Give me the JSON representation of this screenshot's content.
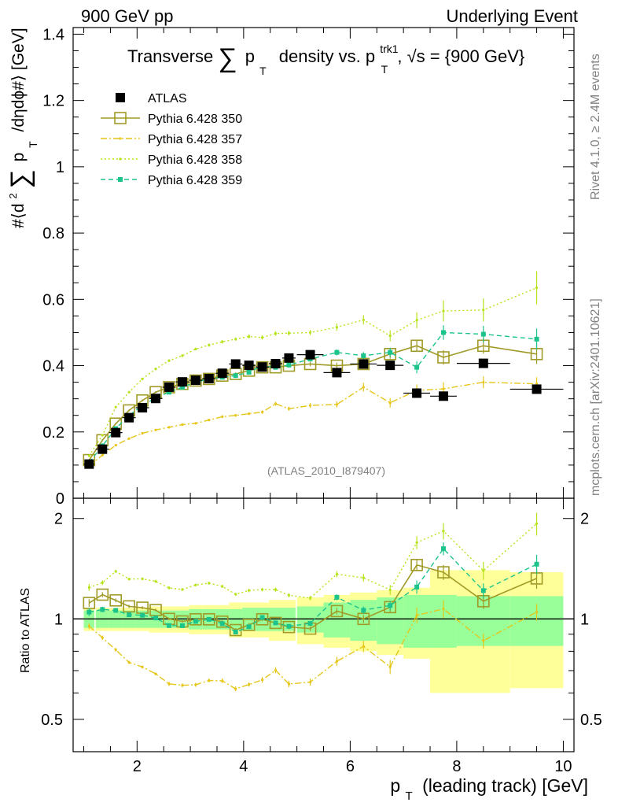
{
  "header": {
    "left": "900 GeV pp",
    "right": "Underlying Event"
  },
  "title": {
    "main": "Transverse",
    "sum_symbol": "∑",
    "p": "p",
    "sub_T": "T",
    "mid": "density vs. p",
    "sup_trk1": "trk1",
    "sub_T2": "T",
    "sqrt_s": ", √s = {900 GeV}"
  },
  "side_labels": {
    "rivet": "Rivet 4.1.0, ≥ 2.4M events",
    "mcplots": "mcplots.cern.ch [arXiv:2401.10621]"
  },
  "analysis_id": "(ATLAS_2010_I879407)",
  "ylabel": {
    "prefix": "#⟨d",
    "sup2": "2",
    "sum": "∑",
    "p": "p",
    "sub_T": "T",
    "suffix": "/dηdϕ#⟩ [GeV]"
  },
  "ratio_ylabel": "Ratio to ATLAS",
  "xlabel": {
    "p": "p",
    "sub_T": "T",
    "rest": "(leading track) [GeV]"
  },
  "legend": [
    {
      "label": "ATLAS",
      "color": "#000000"
    },
    {
      "label": "Pythia 6.428 350",
      "color": "#a09a26"
    },
    {
      "label": "Pythia 6.428 357",
      "color": "#e6c619"
    },
    {
      "label": "Pythia 6.428 358",
      "color": "#b6e31a"
    },
    {
      "label": "Pythia 6.428 359",
      "color": "#1cc48c"
    }
  ],
  "chart_data": {
    "type": "scatter",
    "x_ticks": [
      "2",
      "4",
      "6",
      "8",
      "10"
    ],
    "main_y_ticks": [
      "0",
      "0.2",
      "0.4",
      "0.6",
      "0.8",
      "1",
      "1.2",
      "1.4"
    ],
    "ratio_y_ticks": [
      "0.5",
      "1",
      "2"
    ],
    "main_ylim": [
      0,
      1.42
    ],
    "ratio_ylim": [
      0.4,
      2.3
    ],
    "xlim": [
      0.8,
      10.2
    ],
    "x": [
      1.1,
      1.35,
      1.6,
      1.85,
      2.1,
      2.35,
      2.6,
      2.85,
      3.1,
      3.35,
      3.6,
      3.85,
      4.1,
      4.35,
      4.6,
      4.85,
      5.25,
      5.75,
      6.25,
      6.75,
      7.25,
      7.75,
      8.5,
      9.5
    ],
    "x_err": [
      0.1,
      0.125,
      0.125,
      0.125,
      0.125,
      0.125,
      0.125,
      0.125,
      0.125,
      0.125,
      0.125,
      0.125,
      0.125,
      0.125,
      0.125,
      0.125,
      0.25,
      0.25,
      0.25,
      0.25,
      0.25,
      0.25,
      0.5,
      0.5
    ],
    "band_outer": [
      0.08,
      0.08,
      0.08,
      0.08,
      0.08,
      0.09,
      0.09,
      0.09,
      0.1,
      0.1,
      0.1,
      0.12,
      0.12,
      0.12,
      0.14,
      0.14,
      0.16,
      0.18,
      0.2,
      0.22,
      0.24,
      0.4,
      0.4,
      0.38
    ],
    "band_inner": [
      0.06,
      0.06,
      0.06,
      0.06,
      0.06,
      0.06,
      0.06,
      0.06,
      0.07,
      0.07,
      0.07,
      0.07,
      0.08,
      0.08,
      0.08,
      0.08,
      0.09,
      0.12,
      0.14,
      0.16,
      0.18,
      0.18,
      0.17,
      0.17
    ],
    "series": [
      {
        "name": "ATLAS",
        "color": "#000000",
        "style": "data",
        "values": [
          0.103,
          0.148,
          0.198,
          0.243,
          0.273,
          0.301,
          0.335,
          0.351,
          0.356,
          0.361,
          0.377,
          0.405,
          0.401,
          0.396,
          0.406,
          0.423,
          0.433,
          0.379,
          0.405,
          0.401,
          0.317,
          0.308,
          0.407,
          0.329
        ],
        "err": [
          0.005,
          0.005,
          0.005,
          0.006,
          0.006,
          0.006,
          0.006,
          0.006,
          0.006,
          0.006,
          0.006,
          0.006,
          0.006,
          0.006,
          0.006,
          0.006,
          0.007,
          0.007,
          0.008,
          0.008,
          0.01,
          0.01,
          0.01,
          0.012
        ]
      },
      {
        "name": "Pythia 6.428 350",
        "color": "#a09a26",
        "style": "solid",
        "values": [
          0.115,
          0.175,
          0.225,
          0.265,
          0.295,
          0.32,
          0.335,
          0.345,
          0.355,
          0.36,
          0.37,
          0.375,
          0.385,
          0.395,
          0.395,
          0.4,
          0.405,
          0.4,
          0.405,
          0.435,
          0.46,
          0.425,
          0.46,
          0.435
        ],
        "err": [
          0.003,
          0.003,
          0.003,
          0.003,
          0.003,
          0.003,
          0.003,
          0.003,
          0.004,
          0.004,
          0.004,
          0.005,
          0.005,
          0.005,
          0.006,
          0.006,
          0.007,
          0.009,
          0.011,
          0.014,
          0.018,
          0.022,
          0.024,
          0.03
        ]
      },
      {
        "name": "Pythia 6.428 357",
        "color": "#e6c619",
        "style": "dashdot",
        "values": [
          0.098,
          0.13,
          0.16,
          0.18,
          0.196,
          0.206,
          0.214,
          0.222,
          0.226,
          0.236,
          0.246,
          0.25,
          0.255,
          0.26,
          0.285,
          0.27,
          0.28,
          0.283,
          0.335,
          0.288,
          0.325,
          0.33,
          0.35,
          0.345
        ],
        "err": [
          0.002,
          0.002,
          0.002,
          0.002,
          0.002,
          0.002,
          0.003,
          0.003,
          0.003,
          0.003,
          0.004,
          0.004,
          0.004,
          0.005,
          0.006,
          0.006,
          0.007,
          0.009,
          0.013,
          0.014,
          0.018,
          0.02,
          0.018,
          0.02
        ]
      },
      {
        "name": "Pythia 6.428 358",
        "color": "#b6e31a",
        "style": "dotted",
        "values": [
          0.128,
          0.19,
          0.275,
          0.32,
          0.36,
          0.39,
          0.415,
          0.43,
          0.45,
          0.462,
          0.472,
          0.48,
          0.488,
          0.485,
          0.497,
          0.498,
          0.5,
          0.516,
          0.538,
          0.49,
          0.537,
          0.565,
          0.568,
          0.635
        ],
        "err": [
          0.003,
          0.003,
          0.003,
          0.003,
          0.003,
          0.004,
          0.004,
          0.004,
          0.004,
          0.005,
          0.005,
          0.005,
          0.006,
          0.006,
          0.007,
          0.007,
          0.008,
          0.011,
          0.014,
          0.017,
          0.024,
          0.032,
          0.035,
          0.05
        ]
      },
      {
        "name": "Pythia 6.428 359",
        "color": "#1cc48c",
        "style": "dashed",
        "values": [
          0.108,
          0.158,
          0.21,
          0.25,
          0.28,
          0.303,
          0.32,
          0.335,
          0.35,
          0.36,
          0.365,
          0.37,
          0.38,
          0.4,
          0.395,
          0.402,
          0.42,
          0.44,
          0.43,
          0.44,
          0.395,
          0.5,
          0.495,
          0.48
        ],
        "err": [
          0.003,
          0.003,
          0.003,
          0.003,
          0.003,
          0.003,
          0.003,
          0.004,
          0.004,
          0.004,
          0.004,
          0.005,
          0.005,
          0.005,
          0.006,
          0.006,
          0.007,
          0.009,
          0.011,
          0.014,
          0.018,
          0.022,
          0.025,
          0.032
        ]
      }
    ]
  }
}
